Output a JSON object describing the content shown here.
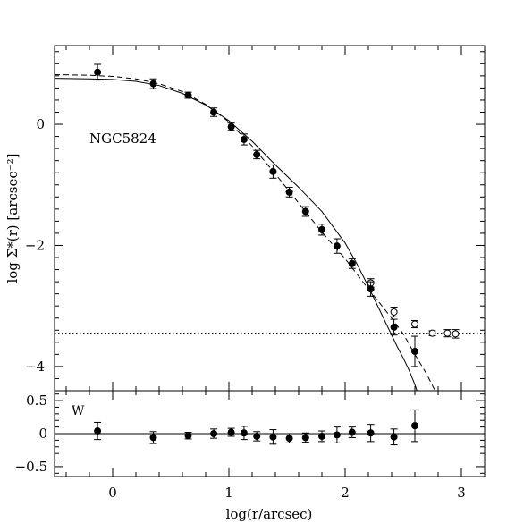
{
  "chart_data": [
    {
      "panel": "top",
      "type": "scatter",
      "annotation": "NGC5824",
      "xlabel": "log(r/arcsec)",
      "ylabel": "log Σ*(r) [arcsec⁻²]",
      "xlim": [
        -0.5,
        3.2
      ],
      "ylim": [
        -4.4,
        1.3
      ],
      "y_ticks": [
        0,
        -2,
        -4
      ],
      "y_tick_labels": [
        "0",
        "−2",
        "−4"
      ],
      "background_level": -3.45,
      "filled_points": [
        {
          "x": -0.13,
          "y": 0.86,
          "err": 0.13
        },
        {
          "x": 0.35,
          "y": 0.67,
          "err": 0.08
        },
        {
          "x": 0.65,
          "y": 0.48,
          "err": 0.05
        },
        {
          "x": 0.87,
          "y": 0.2,
          "err": 0.07
        },
        {
          "x": 1.02,
          "y": -0.04,
          "err": 0.06
        },
        {
          "x": 1.13,
          "y": -0.25,
          "err": 0.09
        },
        {
          "x": 1.24,
          "y": -0.5,
          "err": 0.07
        },
        {
          "x": 1.38,
          "y": -0.78,
          "err": 0.11
        },
        {
          "x": 1.52,
          "y": -1.12,
          "err": 0.08
        },
        {
          "x": 1.66,
          "y": -1.44,
          "err": 0.08
        },
        {
          "x": 1.8,
          "y": -1.74,
          "err": 0.09
        },
        {
          "x": 1.93,
          "y": -2.01,
          "err": 0.12
        },
        {
          "x": 2.06,
          "y": -2.3,
          "err": 0.08
        },
        {
          "x": 2.22,
          "y": -2.72,
          "err": 0.12
        },
        {
          "x": 2.42,
          "y": -3.35,
          "err": 0.13
        },
        {
          "x": 2.6,
          "y": -3.75,
          "err": 0.25
        }
      ],
      "open_points": [
        {
          "x": 2.22,
          "y": -2.62,
          "err": 0.07
        },
        {
          "x": 2.42,
          "y": -3.1,
          "err": 0.08
        },
        {
          "x": 2.6,
          "y": -3.3,
          "err": 0.06
        },
        {
          "x": 2.75,
          "y": -3.45,
          "err": 0.04
        },
        {
          "x": 2.88,
          "y": -3.45,
          "err": 0.06
        },
        {
          "x": 2.95,
          "y": -3.46,
          "err": 0.07
        }
      ],
      "model_solid": {
        "x": [
          -0.5,
          -0.2,
          0.0,
          0.2,
          0.4,
          0.6,
          0.8,
          1.0,
          1.2,
          1.4,
          1.6,
          1.8,
          2.0,
          2.1,
          2.2,
          2.3,
          2.4,
          2.45,
          2.5,
          2.55,
          2.6,
          2.65,
          2.7
        ],
        "y": [
          0.76,
          0.75,
          0.74,
          0.71,
          0.64,
          0.51,
          0.32,
          0.06,
          -0.28,
          -0.67,
          -1.04,
          -1.44,
          -1.96,
          -2.3,
          -2.68,
          -3.08,
          -3.48,
          -3.68,
          -3.86,
          -4.06,
          -4.3,
          -4.58,
          -4.9
        ]
      },
      "model_dashed": {
        "x": [
          -0.5,
          -0.2,
          0.0,
          0.2,
          0.4,
          0.6,
          0.8,
          1.0,
          1.2,
          1.4,
          1.6,
          1.8,
          2.0,
          2.2,
          2.4,
          2.5,
          2.6,
          2.7,
          2.8
        ],
        "y": [
          0.82,
          0.81,
          0.79,
          0.75,
          0.67,
          0.54,
          0.33,
          0.04,
          -0.36,
          -0.82,
          -1.3,
          -1.78,
          -2.22,
          -2.72,
          -3.2,
          -3.46,
          -3.8,
          -4.12,
          -4.5
        ]
      }
    },
    {
      "panel": "bottom",
      "type": "scatter",
      "annotation": "W",
      "xlabel": "log(r/arcsec)",
      "xlim": [
        -0.5,
        3.2
      ],
      "ylim": [
        -0.65,
        0.65
      ],
      "x_ticks": [
        0,
        1,
        2,
        3
      ],
      "x_tick_labels": [
        "0",
        "1",
        "2",
        "3"
      ],
      "y_ticks": [
        0.5,
        0,
        -0.5
      ],
      "y_tick_labels": [
        "0.5",
        "0",
        "−0.5"
      ],
      "reference_line": 0,
      "points": [
        {
          "x": -0.13,
          "y": 0.04,
          "err": 0.13
        },
        {
          "x": 0.35,
          "y": -0.06,
          "err": 0.09
        },
        {
          "x": 0.65,
          "y": -0.03,
          "err": 0.05
        },
        {
          "x": 0.87,
          "y": 0.0,
          "err": 0.07
        },
        {
          "x": 1.02,
          "y": 0.02,
          "err": 0.06
        },
        {
          "x": 1.13,
          "y": 0.01,
          "err": 0.1
        },
        {
          "x": 1.24,
          "y": -0.04,
          "err": 0.07
        },
        {
          "x": 1.38,
          "y": -0.05,
          "err": 0.11
        },
        {
          "x": 1.52,
          "y": -0.07,
          "err": 0.07
        },
        {
          "x": 1.66,
          "y": -0.06,
          "err": 0.07
        },
        {
          "x": 1.8,
          "y": -0.04,
          "err": 0.08
        },
        {
          "x": 1.93,
          "y": -0.02,
          "err": 0.12
        },
        {
          "x": 2.06,
          "y": 0.02,
          "err": 0.08
        },
        {
          "x": 2.22,
          "y": 0.01,
          "err": 0.13
        },
        {
          "x": 2.42,
          "y": -0.05,
          "err": 0.12
        },
        {
          "x": 2.6,
          "y": 0.12,
          "err": 0.24
        }
      ]
    }
  ]
}
